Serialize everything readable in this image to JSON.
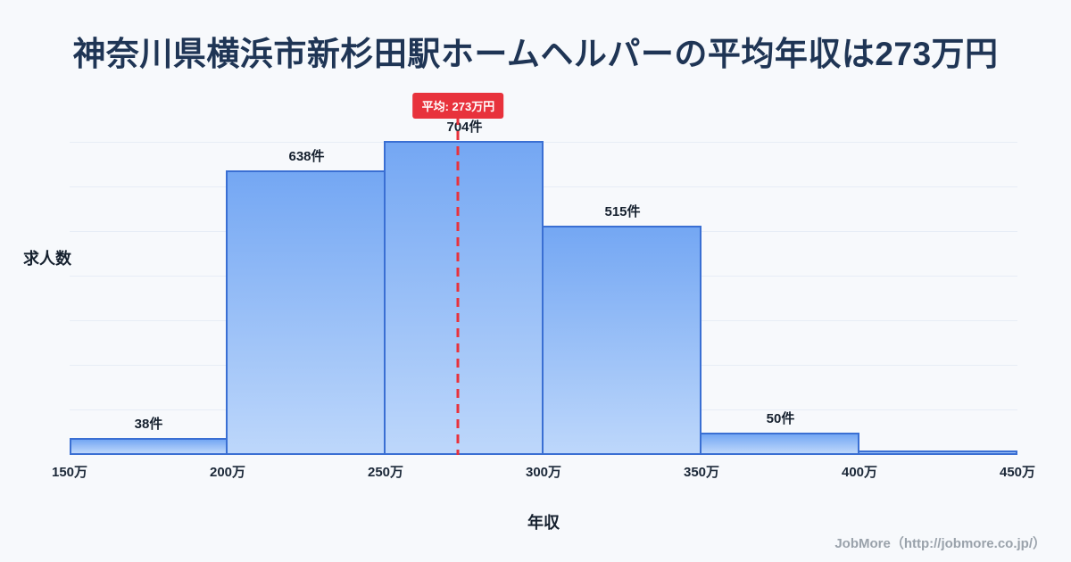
{
  "title": "神奈川県横浜市新杉田駅ホームヘルパーの平均年収は273万円",
  "chart_data": {
    "type": "bar",
    "title": "神奈川県横浜市新杉田駅ホームヘルパーの平均年収は273万円",
    "xlabel": "年収",
    "ylabel": "求人数",
    "x_range": [
      150,
      450
    ],
    "x_ticks": [
      "150万",
      "200万",
      "250万",
      "300万",
      "350万",
      "400万",
      "450万"
    ],
    "ylim": [
      0,
      760
    ],
    "grid": true,
    "legend": false,
    "bins": [
      {
        "range": "150万-200万",
        "count": 38,
        "label": "38件"
      },
      {
        "range": "200万-250万",
        "count": 638,
        "label": "638件"
      },
      {
        "range": "250万-300万",
        "count": 704,
        "label": "704件"
      },
      {
        "range": "300万-350万",
        "count": 515,
        "label": "515件"
      },
      {
        "range": "350万-400万",
        "count": 50,
        "label": "50件"
      },
      {
        "range": "400万-450万",
        "count": 10,
        "label": ""
      }
    ],
    "average": {
      "value": 273,
      "label": "平均: 273万円"
    }
  },
  "footer": {
    "credit": "JobMore（http://jobmore.co.jp/）"
  },
  "colors": {
    "background": "#f7f9fc",
    "title_text": "#1f3555",
    "bar_fill_top": "#74a7f3",
    "bar_fill_bottom": "#bdd7fb",
    "bar_border": "#3a6fd3",
    "average_line": "#e8323c",
    "badge_bg": "#e8323c",
    "badge_text": "#ffffff"
  }
}
